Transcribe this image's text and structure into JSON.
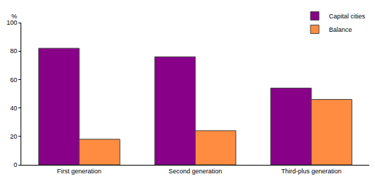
{
  "chart_data": {
    "type": "bar",
    "ylabel": "%",
    "categories": [
      "First generation",
      "Second generation",
      "Third-plus generation"
    ],
    "series": [
      {
        "name": "Capital cities",
        "color": "#880088",
        "values": [
          82,
          76,
          54
        ]
      },
      {
        "name": "Balance",
        "color": "#ff8c40",
        "values": [
          18,
          24,
          46
        ]
      }
    ],
    "ylim": [
      0,
      100
    ],
    "yticks": [
      0,
      20,
      40,
      60,
      80,
      100
    ],
    "grid": true,
    "legend": "top right"
  }
}
